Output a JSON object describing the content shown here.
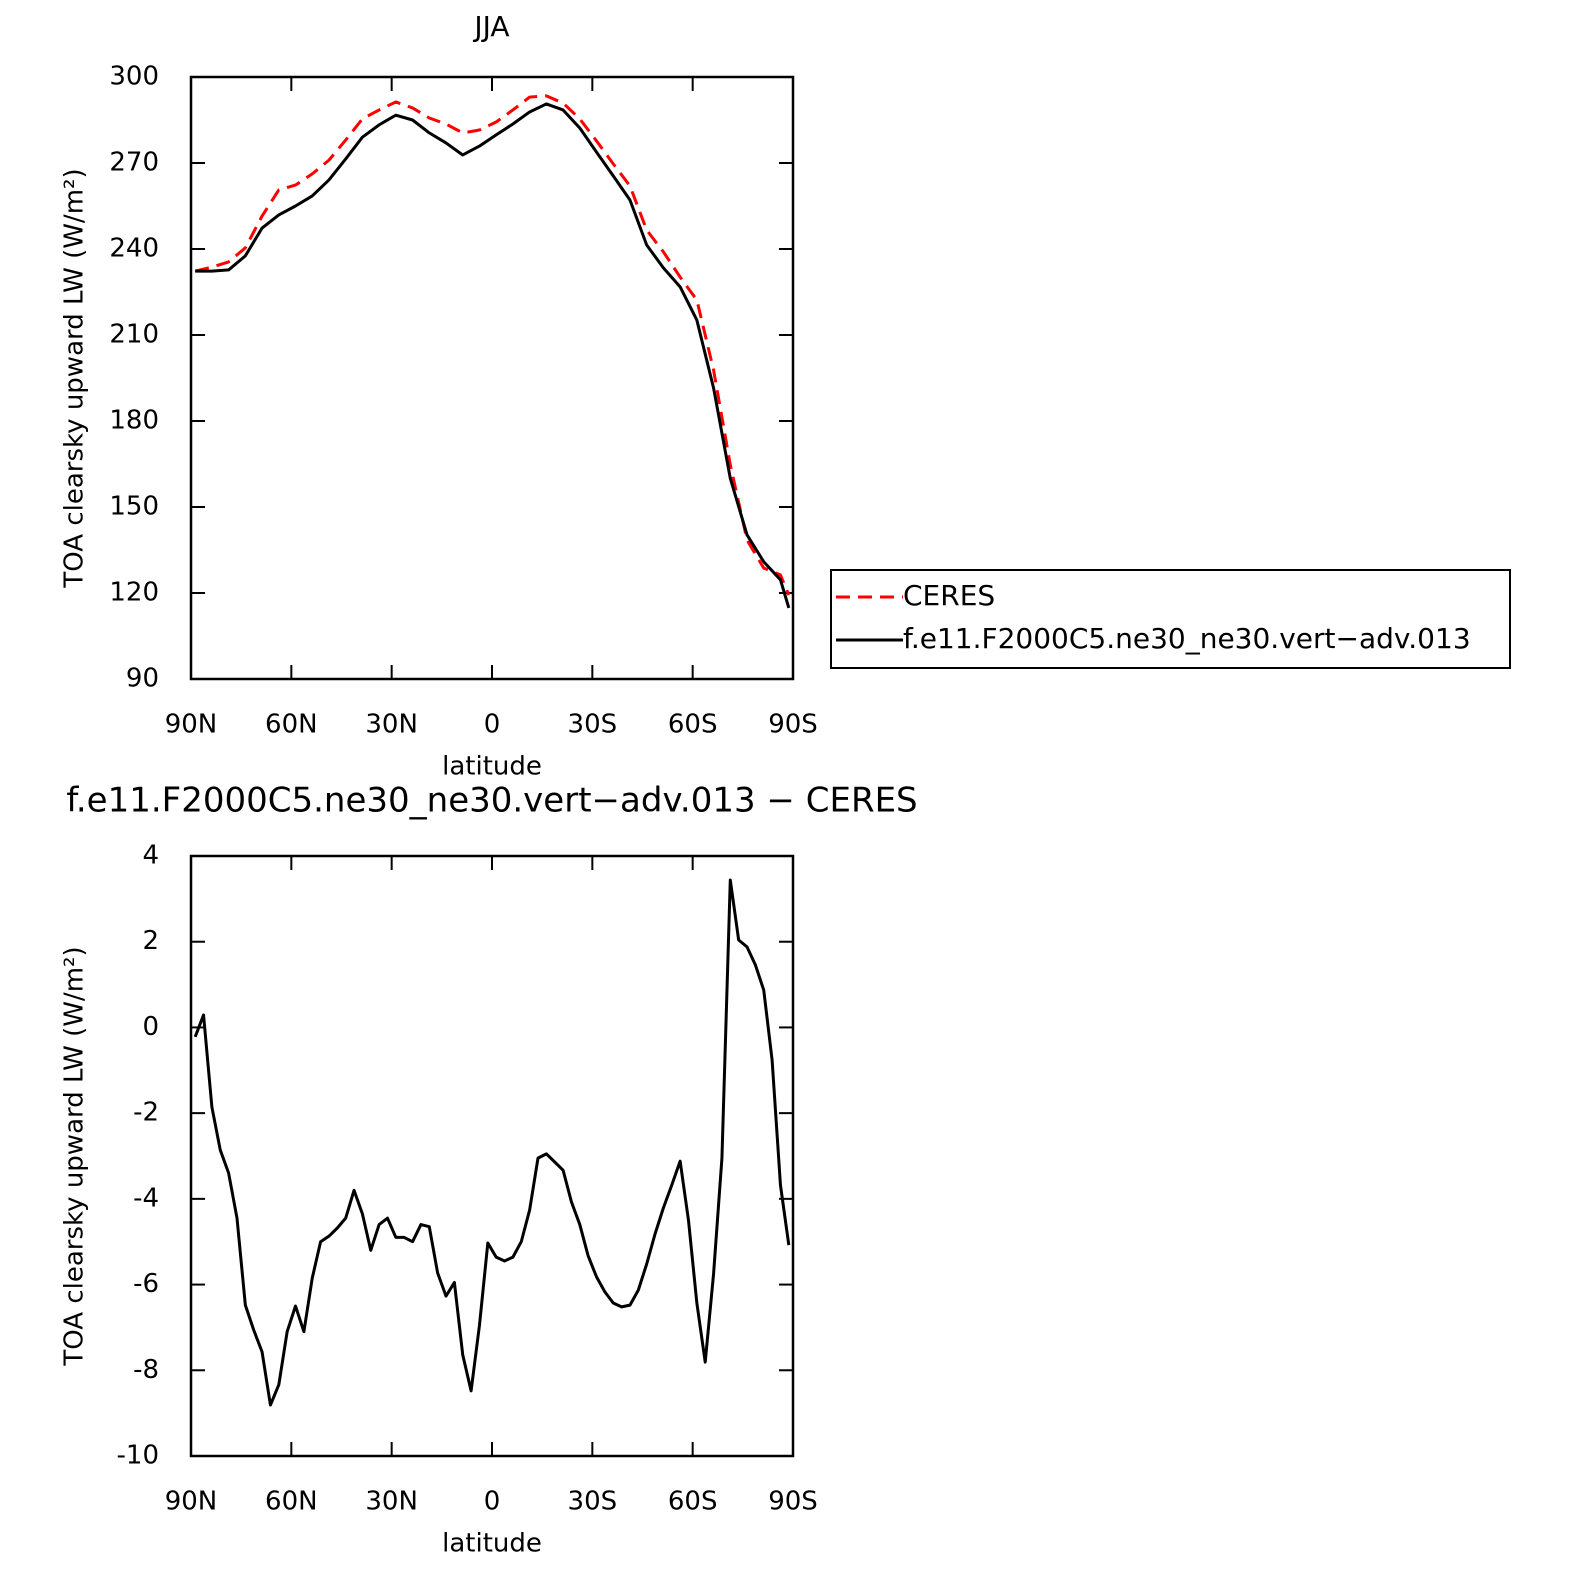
{
  "chart_data": [
    {
      "type": "line",
      "title": "JJA",
      "xlabel": "latitude",
      "ylabel": "TOA clearsky upward LW (W/m²)",
      "xlim": [
        90,
        -90
      ],
      "xticks": [
        {
          "value": 90,
          "label": "90N"
        },
        {
          "value": 60,
          "label": "60N"
        },
        {
          "value": 30,
          "label": "30N"
        },
        0,
        {
          "value": -30,
          "label": "30S"
        },
        {
          "value": -60,
          "label": "60S"
        },
        {
          "value": -90,
          "label": "90S"
        }
      ],
      "ylim": [
        90,
        300
      ],
      "yticks": [
        90,
        120,
        150,
        180,
        210,
        240,
        270,
        300
      ],
      "legend": "right",
      "x": [
        88.75,
        83.75,
        78.75,
        73.75,
        68.75,
        63.75,
        58.75,
        53.75,
        48.75,
        43.75,
        38.75,
        33.75,
        28.75,
        23.75,
        18.75,
        13.75,
        8.75,
        3.75,
        -1.25,
        -6.25,
        -11.25,
        -16.25,
        -21.25,
        -26.25,
        -31.25,
        -36.25,
        -41.25,
        -46.25,
        -51.25,
        -56.25,
        -61.25,
        -66.25,
        -71.25,
        -76.25,
        -81.25,
        -86.25,
        -88.75
      ],
      "series": [
        {
          "name": "CERES",
          "color": "#ff0000",
          "dash": true,
          "values": [
            232.3,
            233.7,
            235.5,
            240.4,
            251.5,
            260.6,
            262.3,
            266.2,
            271,
            278,
            285.4,
            288.5,
            291.3,
            289.2,
            285.7,
            283.6,
            280.5,
            281.5,
            284.3,
            288.5,
            293,
            293.4,
            290.9,
            285.4,
            277.7,
            269.7,
            262,
            246.6,
            239,
            230.2,
            222.2,
            197.8,
            164.7,
            138.5,
            128.7,
            126.3,
            119.3
          ]
        },
        {
          "name": "f.e11.F2000C5.ne30_ne30.vert−adv.013",
          "color": "#000000",
          "dash": false,
          "values": [
            232.3,
            232.3,
            232.7,
            237.6,
            247.3,
            251.9,
            255,
            258.5,
            264.1,
            271.4,
            279,
            283.3,
            286.7,
            285,
            280.5,
            277,
            272.8,
            275.9,
            279.8,
            283.6,
            287.8,
            290.6,
            288.5,
            282.2,
            273.8,
            265.5,
            257.1,
            241.4,
            233.4,
            226.8,
            215.2,
            191.5,
            160,
            140.3,
            130.9,
            124.6,
            114.8
          ]
        }
      ]
    },
    {
      "type": "line",
      "title": "f.e11.F2000C5.ne30_ne30.vert−adv.013 − CERES",
      "xlabel": "latitude",
      "ylabel": "TOA clearsky upward LW (W/m²)",
      "xlim": [
        90,
        -90
      ],
      "xticks": [
        {
          "value": 90,
          "label": "90N"
        },
        {
          "value": 60,
          "label": "60N"
        },
        {
          "value": 30,
          "label": "30N"
        },
        0,
        {
          "value": -30,
          "label": "30S"
        },
        {
          "value": -60,
          "label": "60S"
        },
        {
          "value": -90,
          "label": "90S"
        }
      ],
      "ylim": [
        -10,
        4
      ],
      "yticks": [
        -10,
        -8,
        -6,
        -4,
        -2,
        0,
        2,
        4
      ],
      "x": [
        88.75,
        86.25,
        83.75,
        81.25,
        78.75,
        76.25,
        73.75,
        71.25,
        68.75,
        66.25,
        63.75,
        61.25,
        58.75,
        56.25,
        53.75,
        51.25,
        48.75,
        46.25,
        43.75,
        41.25,
        38.75,
        36.25,
        33.75,
        31.25,
        28.75,
        26.25,
        23.75,
        21.25,
        18.75,
        16.25,
        13.75,
        11.25,
        8.75,
        6.25,
        3.75,
        1.25,
        -1.25,
        -3.75,
        -6.25,
        -8.75,
        -11.25,
        -13.75,
        -16.25,
        -18.75,
        -21.25,
        -23.75,
        -26.25,
        -28.75,
        -31.25,
        -33.75,
        -36.25,
        -38.75,
        -41.25,
        -43.75,
        -46.25,
        -48.75,
        -51.25,
        -53.75,
        -56.25,
        -58.75,
        -61.25,
        -63.75,
        -66.25,
        -68.75,
        -71.25,
        -73.75,
        -76.25,
        -78.75,
        -81.25,
        -83.75,
        -86.25,
        -88.75
      ],
      "series": [
        {
          "color": "#000000",
          "values": [
            -0.22,
            0.29,
            -1.86,
            -2.86,
            -3.4,
            -4.45,
            -6.48,
            -7.06,
            -7.57,
            -8.81,
            -8.34,
            -7.1,
            -6.5,
            -7.1,
            -5.85,
            -5.0,
            -4.87,
            -4.68,
            -4.45,
            -3.8,
            -4.35,
            -5.2,
            -4.6,
            -4.45,
            -4.9,
            -4.9,
            -5.0,
            -4.6,
            -4.65,
            -5.73,
            -6.27,
            -5.95,
            -7.64,
            -8.48,
            -6.95,
            -5.03,
            -5.36,
            -5.45,
            -5.36,
            -5.0,
            -4.26,
            -3.05,
            -2.95,
            -3.14,
            -3.33,
            -4.07,
            -4.6,
            -5.33,
            -5.82,
            -6.17,
            -6.43,
            -6.52,
            -6.48,
            -6.13,
            -5.52,
            -4.82,
            -4.21,
            -3.68,
            -3.12,
            -4.5,
            -6.43,
            -7.81,
            -5.75,
            -3.05,
            3.44,
            2.04,
            1.88,
            1.46,
            0.87,
            -0.76,
            -3.68,
            -5.08
          ]
        }
      ]
    }
  ]
}
